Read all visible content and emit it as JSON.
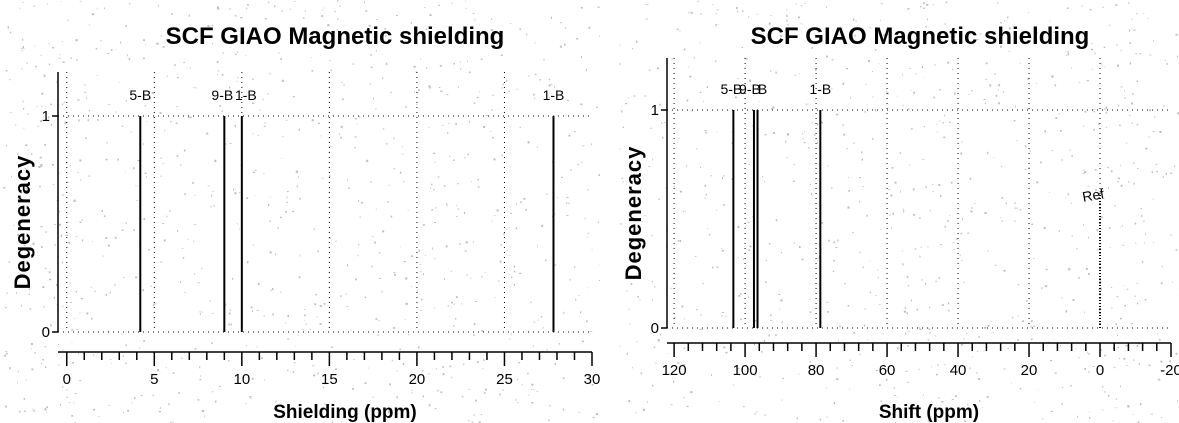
{
  "chart_data": [
    {
      "type": "bar",
      "title": "SCF GIAO Magnetic shielding",
      "xlabel": "Shielding (ppm)",
      "ylabel": "Degeneracy",
      "xlim": [
        -0.5,
        30
      ],
      "ylim": [
        0,
        1.2
      ],
      "x_ticks": [
        "0",
        "5",
        "10",
        "15",
        "20",
        "25",
        "30"
      ],
      "x_tick_values": [
        0,
        5,
        10,
        15,
        20,
        25,
        30
      ],
      "y_ticks": [
        "0",
        "1"
      ],
      "y_tick_values": [
        0,
        1
      ],
      "grid": true,
      "series": [
        {
          "labels": [
            "5-B",
            "9-B",
            "1-B",
            "1-B"
          ],
          "x": [
            4.2,
            9.0,
            10.0,
            27.8
          ],
          "values": [
            1,
            1,
            1,
            1
          ]
        }
      ]
    },
    {
      "type": "bar",
      "title": "SCF GIAO Magnetic shielding",
      "xlabel": "Shift (ppm)",
      "ylabel": "Degeneracy",
      "xlim": [
        122,
        -20
      ],
      "ylim": [
        0,
        1.2
      ],
      "x_ticks": [
        "120",
        "100",
        "80",
        "60",
        "40",
        "20",
        "0",
        "-20"
      ],
      "x_tick_values": [
        120,
        100,
        80,
        60,
        40,
        20,
        0,
        -20
      ],
      "y_ticks": [
        "0",
        "1"
      ],
      "y_tick_values": [
        0,
        1
      ],
      "grid": true,
      "series": [
        {
          "labels": [
            "5-B",
            "9-B",
            "B",
            "1-B"
          ],
          "x": [
            103.3,
            97.5,
            96.5,
            78.8
          ],
          "values": [
            1,
            1,
            1,
            1
          ]
        },
        {
          "labels": [
            "Ref"
          ],
          "x": [
            0
          ],
          "values": [
            0.62
          ]
        }
      ],
      "peak_label_text": [
        "5-B",
        "9-B",
        "B",
        "1-B"
      ],
      "ref_label": "Ref"
    }
  ]
}
